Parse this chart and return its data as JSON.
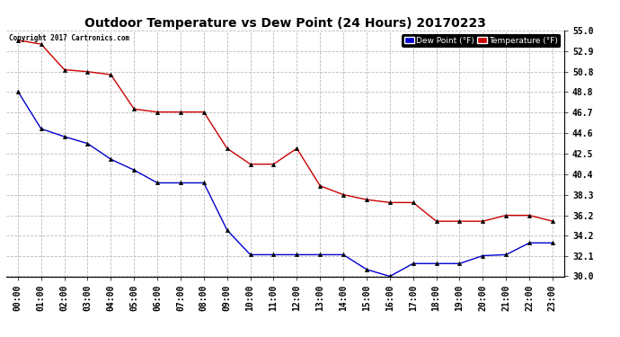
{
  "title": "Outdoor Temperature vs Dew Point (24 Hours) 20170223",
  "copyright": "Copyright 2017 Cartronics.com",
  "hours": [
    "00:00",
    "01:00",
    "02:00",
    "03:00",
    "04:00",
    "05:00",
    "06:00",
    "07:00",
    "08:00",
    "09:00",
    "10:00",
    "11:00",
    "12:00",
    "13:00",
    "14:00",
    "15:00",
    "16:00",
    "17:00",
    "18:00",
    "19:00",
    "20:00",
    "21:00",
    "22:00",
    "23:00"
  ],
  "temperature": [
    54.0,
    53.6,
    51.0,
    50.8,
    50.5,
    47.0,
    46.7,
    46.7,
    46.7,
    43.0,
    41.4,
    41.4,
    43.0,
    39.2,
    38.3,
    37.8,
    37.5,
    37.5,
    35.6,
    35.6,
    35.6,
    36.2,
    36.2,
    35.6
  ],
  "dew_point": [
    48.8,
    45.0,
    44.2,
    43.5,
    41.9,
    40.8,
    39.5,
    39.5,
    39.5,
    34.7,
    32.2,
    32.2,
    32.2,
    32.2,
    32.2,
    30.7,
    30.0,
    31.3,
    31.3,
    31.3,
    32.1,
    32.2,
    33.4,
    33.4
  ],
  "temp_color": "#cc0000",
  "dew_color": "#0000cc",
  "marker_color": "#000000",
  "ylim_min": 30.0,
  "ylim_max": 55.0,
  "yticks": [
    30.0,
    32.1,
    34.2,
    36.2,
    38.3,
    40.4,
    42.5,
    44.6,
    46.7,
    48.8,
    50.8,
    52.9,
    55.0
  ],
  "bg_color": "#ffffff",
  "plot_bg_color": "#ffffff",
  "grid_color": "#bbbbbb",
  "title_fontsize": 10,
  "tick_fontsize": 7,
  "legend_dew_label": "Dew Point (°F)",
  "legend_temp_label": "Temperature (°F)"
}
